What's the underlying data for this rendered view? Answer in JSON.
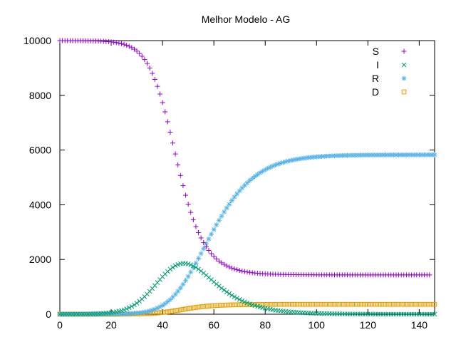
{
  "chart_data": {
    "type": "scatter",
    "title": "Melhor Modelo - AG",
    "xlabel": "",
    "ylabel": "",
    "xlim": [
      0,
      146
    ],
    "ylim": [
      0,
      10000
    ],
    "xticks": [
      0,
      20,
      40,
      60,
      80,
      100,
      120,
      140
    ],
    "yticks": [
      0,
      2000,
      4000,
      6000,
      8000,
      10000
    ],
    "grid": false,
    "legend_position": "top-right",
    "x_start": 0,
    "x_step": 1,
    "series": [
      {
        "name": "S",
        "color": "#9400d3",
        "marker": "plus",
        "values": [
          10000,
          10000,
          9999,
          9999,
          9998,
          9998,
          9997,
          9997,
          9996,
          9995,
          9994,
          9992,
          9991,
          9989,
          9986,
          9983,
          9979,
          9974,
          9968,
          9961,
          9952,
          9941,
          9927,
          9910,
          9889,
          9863,
          9831,
          9792,
          9744,
          9686,
          9615,
          9530,
          9428,
          9307,
          9164,
          8997,
          8803,
          8581,
          8329,
          8047,
          7736,
          7397,
          7034,
          6652,
          6257,
          5857,
          5459,
          5071,
          4699,
          4348,
          4022,
          3722,
          3449,
          3203,
          2983,
          2788,
          2615,
          2463,
          2330,
          2213,
          2111,
          2022,
          1945,
          1878,
          1820,
          1769,
          1725,
          1687,
          1654,
          1625,
          1600,
          1578,
          1560,
          1543,
          1529,
          1517,
          1506,
          1497,
          1489,
          1482,
          1476,
          1471,
          1467,
          1463,
          1459,
          1456,
          1454,
          1452,
          1450,
          1448,
          1446,
          1445,
          1444,
          1443,
          1442,
          1441,
          1441,
          1440,
          1440,
          1439,
          1439,
          1438,
          1438,
          1438,
          1438,
          1437,
          1437,
          1437,
          1437,
          1437,
          1437,
          1437,
          1436,
          1436,
          1436,
          1436,
          1436,
          1436,
          1436,
          1436,
          1436,
          1436,
          1436,
          1436,
          1436,
          1436,
          1436,
          1436,
          1436,
          1436,
          1436,
          1436,
          1436,
          1436,
          1436,
          1436,
          1436,
          1436,
          1436,
          1436,
          1436,
          1436,
          1436,
          1436,
          1436
        ]
      },
      {
        "name": "I",
        "color": "#009e73",
        "marker": "cross",
        "values": [
          1,
          1,
          1,
          2,
          2,
          3,
          3,
          4,
          5,
          6,
          8,
          9,
          11,
          14,
          17,
          21,
          26,
          32,
          39,
          48,
          59,
          73,
          89,
          109,
          133,
          162,
          197,
          238,
          286,
          341,
          404,
          475,
          554,
          641,
          735,
          835,
          940,
          1048,
          1157,
          1265,
          1370,
          1469,
          1561,
          1643,
          1714,
          1772,
          1816,
          1845,
          1858,
          1856,
          1839,
          1808,
          1765,
          1711,
          1648,
          1578,
          1503,
          1424,
          1343,
          1262,
          1181,
          1102,
          1025,
          952,
          882,
          815,
          752,
          693,
          637,
          585,
          537,
          492,
          451,
          412,
          377,
          344,
          314,
          287,
          262,
          238,
          217,
          198,
          180,
          164,
          149,
          136,
          123,
          112,
          102,
          93,
          84,
          77,
          70,
          63,
          57,
          52,
          47,
          43,
          39,
          35,
          32,
          29,
          26,
          24,
          22,
          20,
          18,
          16,
          15,
          13,
          12,
          11,
          10,
          9,
          8,
          7,
          7,
          6,
          5,
          5,
          4,
          4,
          4,
          3,
          3,
          3,
          2,
          2,
          2,
          2,
          2,
          1,
          1,
          1,
          1,
          1,
          1,
          1,
          1,
          1,
          1,
          1,
          1,
          0,
          0,
          0,
          0
        ]
      },
      {
        "name": "R",
        "color": "#56b4e9",
        "marker": "star",
        "values": [
          0,
          0,
          0,
          0,
          0,
          0,
          0,
          0,
          0,
          0,
          0,
          0,
          1,
          1,
          1,
          1,
          2,
          2,
          3,
          3,
          4,
          5,
          7,
          8,
          10,
          13,
          16,
          21,
          26,
          33,
          41,
          51,
          64,
          80,
          99,
          122,
          150,
          183,
          222,
          268,
          322,
          384,
          455,
          536,
          627,
          728,
          839,
          961,
          1092,
          1232,
          1381,
          1538,
          1701,
          1869,
          2042,
          2218,
          2396,
          2574,
          2751,
          2926,
          3098,
          3266,
          3429,
          3587,
          3739,
          3884,
          4023,
          4155,
          4280,
          4398,
          4509,
          4613,
          4711,
          4802,
          4887,
          4966,
          5040,
          5108,
          5171,
          5229,
          5282,
          5331,
          5376,
          5417,
          5455,
          5489,
          5521,
          5549,
          5575,
          5599,
          5621,
          5640,
          5658,
          5674,
          5689,
          5702,
          5714,
          5725,
          5735,
          5744,
          5752,
          5759,
          5766,
          5772,
          5777,
          5782,
          5786,
          5790,
          5794,
          5797,
          5800,
          5803,
          5805,
          5807,
          5809,
          5811,
          5812,
          5814,
          5815,
          5816,
          5817,
          5818,
          5819,
          5820,
          5820,
          5821,
          5821,
          5822,
          5822,
          5823,
          5823,
          5823,
          5824,
          5824,
          5824,
          5824,
          5825,
          5825,
          5825,
          5825,
          5825,
          5825,
          5825,
          5825,
          5826,
          5826,
          5826,
          5826,
          5826
        ]
      },
      {
        "name": "D",
        "color": "#e69f00",
        "marker": "square",
        "values": [
          0,
          0,
          0,
          0,
          0,
          0,
          0,
          0,
          0,
          0,
          0,
          0,
          0,
          0,
          0,
          0,
          0,
          1,
          1,
          1,
          1,
          1,
          2,
          2,
          3,
          3,
          4,
          5,
          6,
          8,
          10,
          12,
          15,
          18,
          22,
          27,
          32,
          39,
          46,
          55,
          64,
          75,
          87,
          100,
          114,
          129,
          144,
          160,
          176,
          192,
          207,
          222,
          236,
          249,
          261,
          272,
          282,
          291,
          299,
          306,
          312,
          318,
          323,
          327,
          331,
          335,
          338,
          341,
          343,
          345,
          347,
          349,
          350,
          351,
          352,
          353,
          354,
          355,
          356,
          356,
          357,
          357,
          358,
          358,
          358,
          359,
          359,
          359,
          359,
          359,
          360,
          360,
          360,
          360,
          360,
          360,
          360,
          360,
          360,
          360,
          360,
          360,
          360,
          360,
          360,
          360,
          360,
          360,
          360,
          360,
          360,
          360,
          360,
          360,
          360,
          360,
          360,
          360,
          360,
          360,
          360,
          360,
          360,
          360,
          360,
          360,
          360,
          360,
          360,
          360,
          360,
          360,
          360,
          360,
          360,
          360,
          360,
          360,
          360,
          360,
          360,
          360,
          360,
          360,
          360,
          360,
          360
        ]
      }
    ]
  }
}
